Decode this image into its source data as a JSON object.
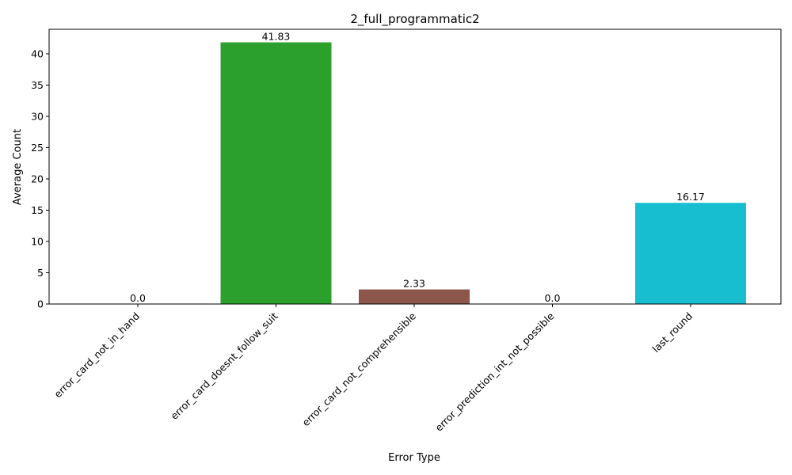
{
  "chart_data": {
    "type": "bar",
    "title": "2_full_programmatic2",
    "xlabel": "Error Type",
    "ylabel": "Average Count",
    "categories": [
      "error_card_not_in_hand",
      "error_card_doesnt_follow_suit",
      "error_card_not_comprehensible",
      "error_prediction_int_not_possible",
      "last_round"
    ],
    "values": [
      0.0,
      41.83,
      2.33,
      0.0,
      16.17
    ],
    "value_labels": [
      "0.0",
      "41.83",
      "2.33",
      "0.0",
      "16.17"
    ],
    "colors": [
      "#1f77b4",
      "#2ca02c",
      "#8c564b",
      "#e377c2",
      "#17becf"
    ],
    "ylim": [
      0,
      43.92
    ],
    "yticks": [
      0,
      5,
      10,
      15,
      20,
      25,
      30,
      35,
      40
    ],
    "grid": false,
    "legend": "none"
  }
}
